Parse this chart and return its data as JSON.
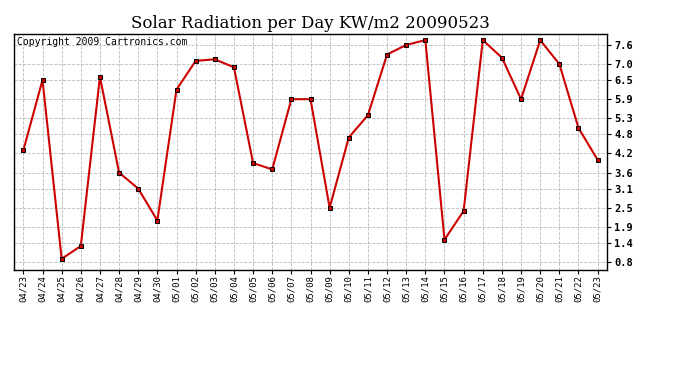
{
  "title": "Solar Radiation per Day KW/m2 20090523",
  "copyright_text": "Copyright 2009 Cartronics.com",
  "line_color": "#cc0000",
  "bg_color": "#ffffff",
  "grid_color": "#aaaaaa",
  "marker": "s",
  "marker_size": 3,
  "marker_color": "#000000",
  "line_width": 1.5,
  "labels": [
    "04/23",
    "04/24",
    "04/25",
    "04/26",
    "04/27",
    "04/28",
    "04/29",
    "04/30",
    "05/01",
    "05/02",
    "05/03",
    "05/04",
    "05/05",
    "05/06",
    "05/07",
    "05/08",
    "05/09",
    "05/10",
    "05/11",
    "05/12",
    "05/13",
    "05/14",
    "05/15",
    "05/16",
    "05/17",
    "05/18",
    "05/19",
    "05/20",
    "05/21",
    "05/22",
    "05/23"
  ],
  "values": [
    4.3,
    6.5,
    0.9,
    1.3,
    6.6,
    3.6,
    3.1,
    2.1,
    6.2,
    7.1,
    7.15,
    6.9,
    3.9,
    3.7,
    5.9,
    5.9,
    2.5,
    4.7,
    5.4,
    7.3,
    7.6,
    7.75,
    1.5,
    2.4,
    7.75,
    7.2,
    5.9,
    7.75,
    7.0,
    5.0,
    4.0
  ],
  "yticks": [
    0.8,
    1.4,
    1.9,
    2.5,
    3.1,
    3.6,
    4.2,
    4.8,
    5.3,
    5.9,
    6.5,
    7.0,
    7.6
  ],
  "ymin": 0.55,
  "ymax": 7.95,
  "title_fontsize": 12,
  "copyright_fontsize": 7,
  "xtick_fontsize": 6.5,
  "ytick_fontsize": 7.5
}
